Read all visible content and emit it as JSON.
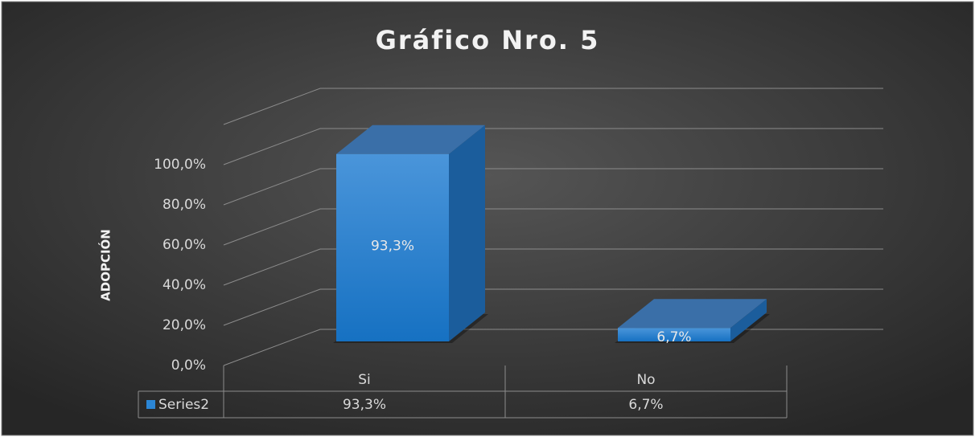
{
  "chart_data": {
    "type": "bar3d",
    "title": "Gráfico Nro. 5",
    "y_label": "ADOPCIÓN",
    "categories": [
      "Si",
      "No"
    ],
    "series": [
      {
        "name": "Series2",
        "color": "#2b86d6",
        "values": [
          93.3,
          6.7
        ],
        "value_labels": [
          "93,3%",
          "6,7%"
        ]
      }
    ],
    "ylim": [
      0,
      120
    ],
    "yticks": [
      {
        "value": 0,
        "label": "0,0%"
      },
      {
        "value": 20,
        "label": "20,0%"
      },
      {
        "value": 40,
        "label": "40,0%"
      },
      {
        "value": 60,
        "label": "60,0%"
      },
      {
        "value": 80,
        "label": "80,0%"
      },
      {
        "value": 100,
        "label": "100,0%"
      }
    ],
    "grid": true,
    "data_table": true
  }
}
